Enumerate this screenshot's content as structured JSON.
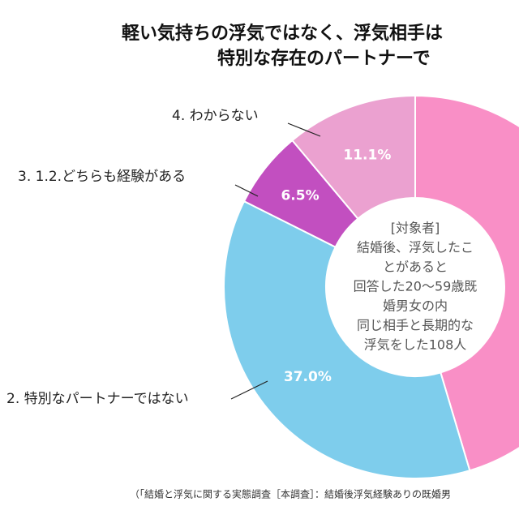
{
  "chart_data": {
    "type": "donut",
    "title_lines": [
      "軽い気持ちの浮気ではなく、浮気相手は",
      "特別な存在のパートナーで"
    ],
    "categories": [
      null,
      "2. 特別なパートナーではない",
      "3. 1.2.どちらも経験がある",
      "4. わからない"
    ],
    "values": [
      45.4,
      37.0,
      6.5,
      11.1
    ],
    "value_labels": [
      null,
      "37.0%",
      "6.5%",
      "11.1%"
    ],
    "colors": [
      "#f98fc6",
      "#7ecdec",
      "#c24fc0",
      "#eba1d0"
    ],
    "center_text": [
      "[対象者]",
      "結婚後、浮気したこ",
      "とがあると",
      "回答した20～59歳既",
      "婚男女の内",
      "同じ相手と長期的な",
      "浮気をした108人"
    ],
    "note": "（「結婚と浮気に関する実態調査［本調査］：結婚後浮気経験ありの既婚男"
  }
}
